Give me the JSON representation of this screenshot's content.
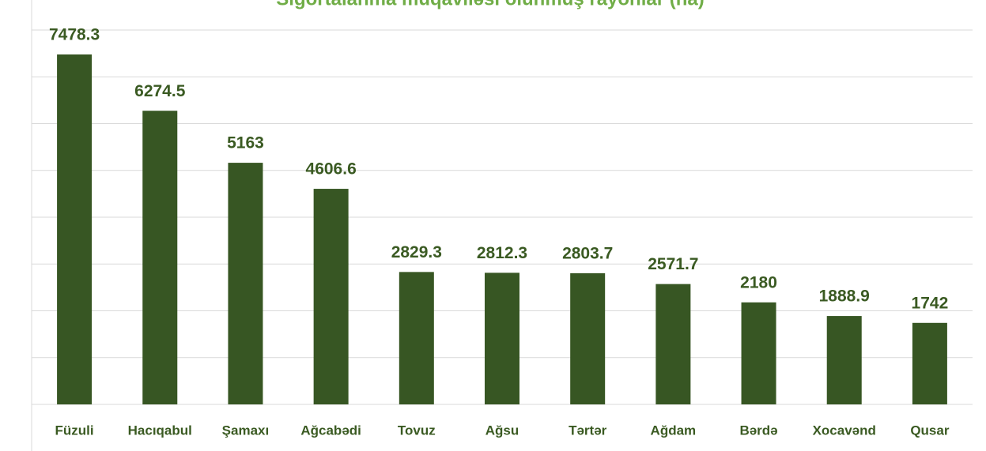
{
  "chart_data": {
    "type": "bar",
    "title": "Sığortalanma müqaviləsi olunmuş rayonlar (ha)",
    "categories": [
      "Füzuli",
      "Hacıqabul",
      "Şamaxı",
      "Ağcabədi",
      "Tovuz",
      "Ağsu",
      "Tərtər",
      "Ağdam",
      "Bərdə",
      "Xocavənd",
      "Qusar"
    ],
    "values": [
      7478.3,
      6274.5,
      5163,
      4606.6,
      2829.3,
      2812.3,
      2803.7,
      2571.7,
      2180,
      1888.9,
      1742
    ],
    "color": "#375623",
    "ylim": [
      0,
      8000
    ],
    "yticks": [
      0,
      1000,
      2000,
      3000,
      4000,
      5000,
      6000,
      7000,
      8000
    ],
    "grid": true
  }
}
